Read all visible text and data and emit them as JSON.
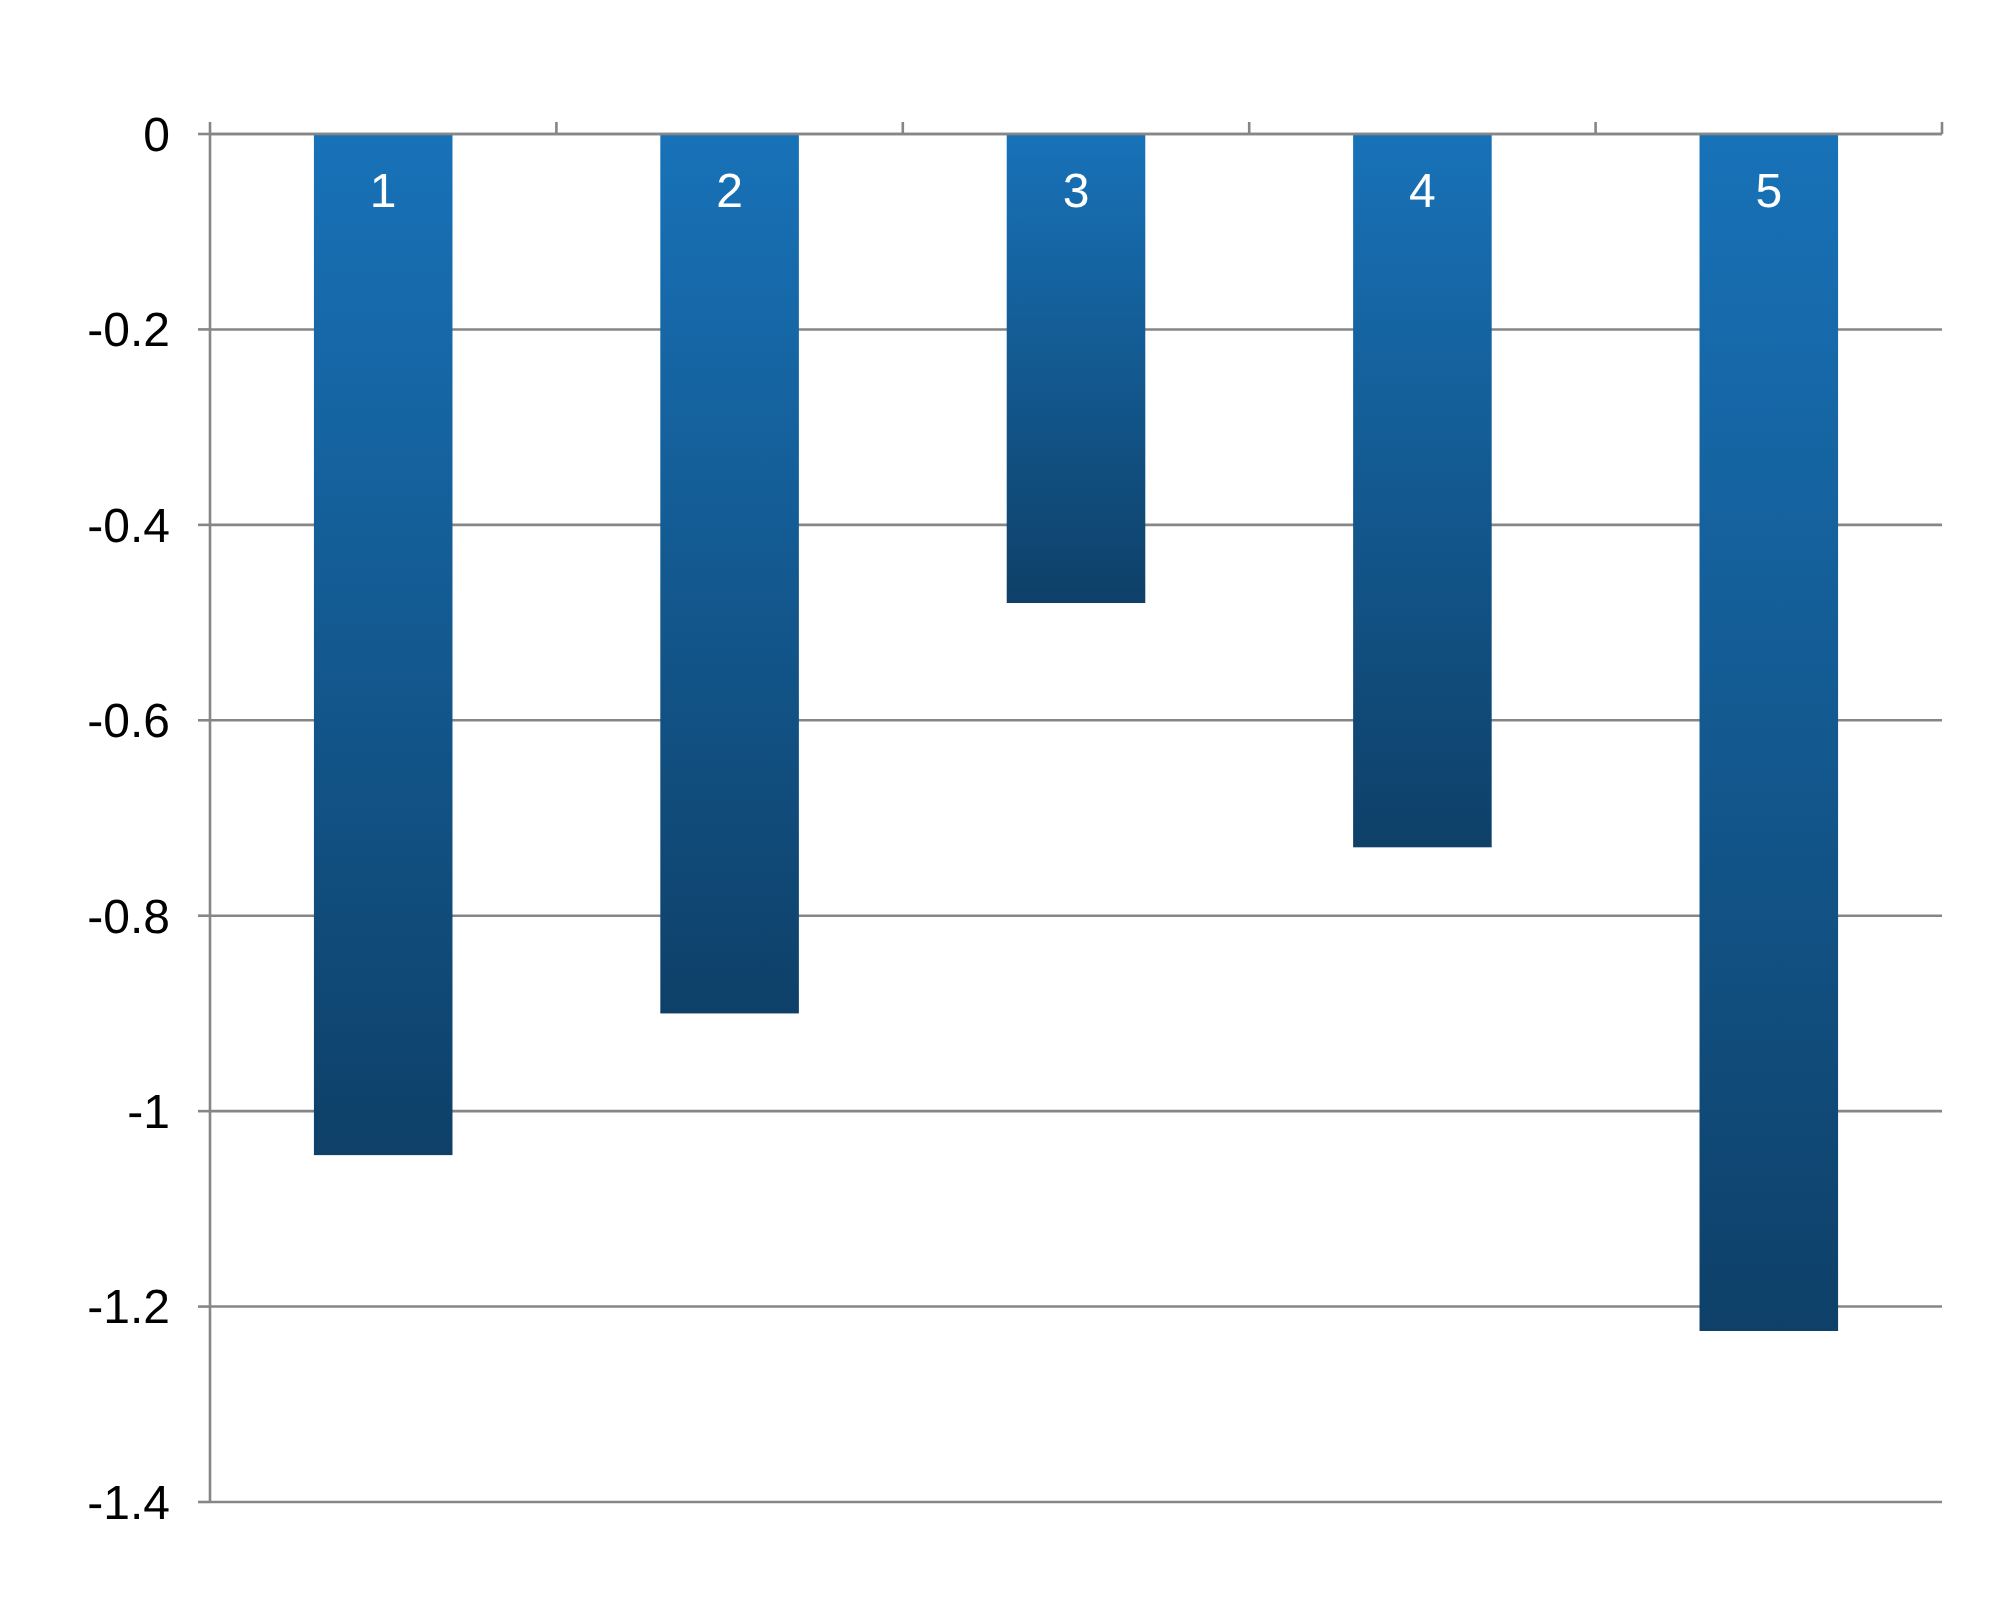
{
  "chart_data": {
    "type": "bar",
    "categories": [
      "1",
      "2",
      "3",
      "4",
      "5"
    ],
    "series": [
      {
        "color": "#1872b8",
        "values": [
          -1.045,
          -0.9,
          -0.48,
          -0.73,
          -1.225
        ]
      }
    ],
    "ylim": [
      -1.4,
      0
    ],
    "yticks": [
      0,
      -0.2,
      -0.4,
      -0.6,
      -0.8,
      -1,
      -1.2,
      -1.4
    ],
    "grid": "y"
  }
}
